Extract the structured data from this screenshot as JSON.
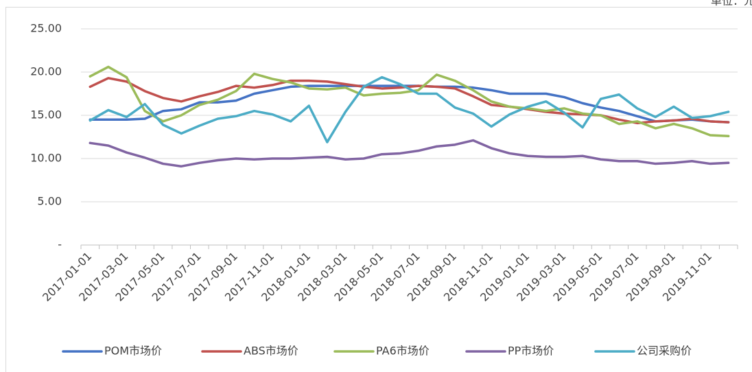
{
  "chart_data": {
    "type": "line",
    "subtitle": "单位：元/千克",
    "categories": [
      "2017-01-01",
      null,
      "2017-03-01",
      null,
      "2017-05-01",
      null,
      "2017-07-01",
      null,
      "2017-09-01",
      null,
      "2017-11-01",
      null,
      "2018-01-01",
      null,
      "2018-03-01",
      null,
      "2018-05-01",
      null,
      "2018-07-01",
      null,
      "2018-09-01",
      null,
      "2018-11-01",
      null,
      "2019-01-01",
      null,
      "2019-03-01",
      null,
      "2019-05-01",
      null,
      "2019-07-01",
      null,
      "2019-09-01",
      null,
      "2019-11-01",
      null
    ],
    "series": [
      {
        "name": "POM市场价",
        "color": "#4472c4",
        "values": [
          14.5,
          14.5,
          14.5,
          14.6,
          15.5,
          15.7,
          16.5,
          16.5,
          16.7,
          17.5,
          17.9,
          18.3,
          18.4,
          18.4,
          18.4,
          18.4,
          18.4,
          18.4,
          18.4,
          18.3,
          18.3,
          18.2,
          17.9,
          17.5,
          17.5,
          17.5,
          17.1,
          16.4,
          15.9,
          15.5,
          14.9,
          14.3,
          14.4,
          14.5,
          14.3,
          14.2
        ]
      },
      {
        "name": "ABS市场价",
        "color": "#c0504d",
        "values": [
          18.3,
          19.3,
          18.9,
          17.8,
          17.0,
          16.6,
          17.2,
          17.7,
          18.4,
          18.2,
          18.5,
          19.0,
          19.0,
          18.9,
          18.6,
          18.3,
          18.1,
          18.2,
          18.4,
          18.3,
          18.1,
          17.2,
          16.2,
          16.0,
          15.7,
          15.4,
          15.2,
          15.1,
          15.0,
          14.5,
          14.1,
          14.3,
          14.4,
          14.6,
          14.3,
          14.2
        ]
      },
      {
        "name": "PA6市场价",
        "color": "#9bbb59",
        "values": [
          19.5,
          20.6,
          19.4,
          15.5,
          14.3,
          15.0,
          16.2,
          16.8,
          17.8,
          19.8,
          19.2,
          18.8,
          18.1,
          18.0,
          18.2,
          17.3,
          17.5,
          17.6,
          17.9,
          19.7,
          19.0,
          17.9,
          16.6,
          16.0,
          15.8,
          15.5,
          15.8,
          15.2,
          15.0,
          14.0,
          14.3,
          13.5,
          14.0,
          13.5,
          12.7,
          12.6
        ]
      },
      {
        "name": "PP市场价",
        "color": "#8064a2",
        "values": [
          11.8,
          11.5,
          10.7,
          10.1,
          9.4,
          9.1,
          9.5,
          9.8,
          10.0,
          9.9,
          10.0,
          10.0,
          10.1,
          10.2,
          9.9,
          10.0,
          10.5,
          10.6,
          10.9,
          11.4,
          11.6,
          12.1,
          11.2,
          10.6,
          10.3,
          10.2,
          10.2,
          10.3,
          9.9,
          9.7,
          9.7,
          9.4,
          9.5,
          9.7,
          9.4,
          9.5
        ]
      },
      {
        "name": "公司采购价",
        "color": "#4bacc6",
        "values": [
          14.4,
          15.6,
          14.8,
          16.3,
          13.9,
          12.9,
          13.8,
          14.6,
          14.9,
          15.5,
          15.1,
          14.3,
          16.1,
          11.9,
          15.4,
          18.3,
          19.4,
          18.6,
          17.5,
          17.5,
          15.9,
          15.2,
          13.7,
          15.1,
          16.0,
          16.6,
          15.3,
          13.6,
          16.9,
          17.4,
          15.8,
          14.8,
          16.0,
          14.7,
          14.9,
          15.4
        ]
      }
    ],
    "ylim": [
      0,
      25
    ],
    "yticks": [
      {
        "value": 0,
        "label": "-"
      },
      {
        "value": 5,
        "label": "5.00"
      },
      {
        "value": 10,
        "label": "10.00"
      },
      {
        "value": 15,
        "label": "15.00"
      },
      {
        "value": 20,
        "label": "20.00"
      },
      {
        "value": 25,
        "label": "25.00"
      }
    ],
    "grid": true,
    "legend": "bottom"
  }
}
